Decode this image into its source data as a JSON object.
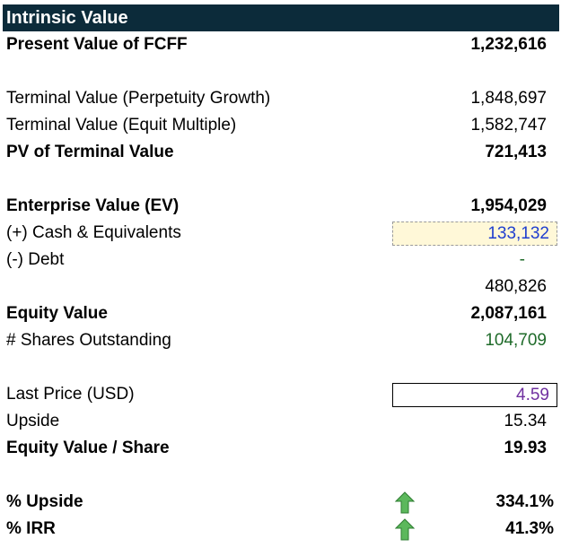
{
  "title": "Intrinsic Value",
  "rows": {
    "pv_fcff": {
      "label": "Present Value of FCFF",
      "value": "1,232,616"
    },
    "tv_perp": {
      "label": "Terminal Value (Perpetuity Growth)",
      "value": "1,848,697"
    },
    "tv_mult": {
      "label": "Terminal Value (Equit Multiple)",
      "value": "1,582,747"
    },
    "pv_tv": {
      "label": "PV of Terminal Value",
      "value": "721,413"
    },
    "ev": {
      "label": "Enterprise Value (EV)",
      "value": "1,954,029"
    },
    "cash": {
      "label": "(+) Cash & Equivalents",
      "value": "133,132"
    },
    "debt": {
      "label": "(-) Debt",
      "value": "-"
    },
    "subtotal": {
      "value": "480,826"
    },
    "equity": {
      "label": "Equity Value",
      "value": "2,087,161"
    },
    "shares": {
      "label": "# Shares Outstanding",
      "value": "104,709"
    },
    "price": {
      "label": "Last Price (USD)",
      "value": "4.59"
    },
    "upside": {
      "label": "Upside",
      "value": "15.34"
    },
    "eq_share": {
      "label": "Equity Value / Share",
      "value": "19.93"
    },
    "pct_upside": {
      "label": "% Upside",
      "value": "334.1%",
      "icon": "green-up-arrow-icon"
    },
    "pct_irr": {
      "label": "% IRR",
      "value": "41.3%",
      "icon": "green-up-arrow-icon"
    }
  },
  "colors": {
    "header_bg": "#0c2b3a",
    "input_blue": "#1f3fcf",
    "link_green": "#1f6b2a",
    "price_purple": "#7030a0",
    "input_fill": "#fff8d8",
    "arrow_green": "#5cb85c"
  }
}
